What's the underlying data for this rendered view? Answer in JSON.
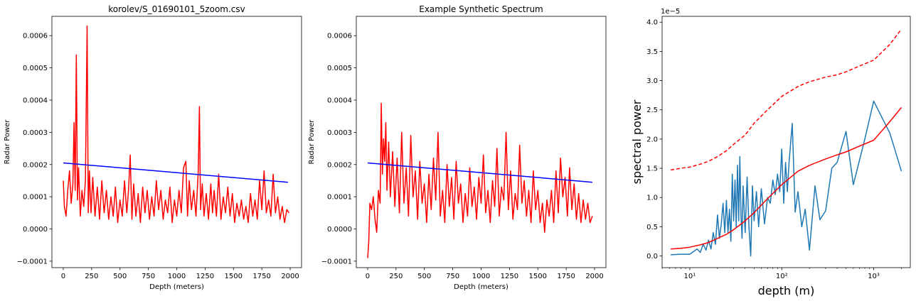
{
  "chart_data": [
    {
      "type": "line",
      "title": "korolev/S_01690101_5zoom.csv",
      "xlabel": "Depth (meters)",
      "ylabel": "Radar Power",
      "xlim": [
        -100,
        2100
      ],
      "ylim": [
        -0.00012,
        0.00066
      ],
      "xticks": [
        0,
        250,
        500,
        750,
        1000,
        1250,
        1500,
        1750,
        2000
      ],
      "xtick_labels": [
        "0",
        "250",
        "500",
        "750",
        "1000",
        "1250",
        "1500",
        "1750",
        "2000"
      ],
      "yticks": [
        -0.0001,
        0.0,
        0.0001,
        0.0002,
        0.0003,
        0.0004,
        0.0005,
        0.0006
      ],
      "ytick_labels": [
        "−0.0001",
        "0.0000",
        "0.0001",
        "0.0002",
        "0.0003",
        "0.0004",
        "0.0005",
        "0.0006"
      ],
      "series": [
        {
          "color": "#ff0000",
          "x": [
            0,
            10,
            25,
            40,
            55,
            70,
            85,
            95,
            105,
            115,
            125,
            135,
            150,
            165,
            180,
            195,
            210,
            220,
            230,
            245,
            260,
            280,
            300,
            320,
            340,
            360,
            380,
            400,
            420,
            440,
            460,
            480,
            500,
            520,
            540,
            560,
            575,
            590,
            605,
            620,
            640,
            660,
            680,
            700,
            720,
            740,
            760,
            780,
            800,
            820,
            840,
            860,
            880,
            900,
            920,
            940,
            960,
            980,
            1000,
            1020,
            1040,
            1060,
            1080,
            1095,
            1110,
            1130,
            1150,
            1170,
            1190,
            1200,
            1210,
            1225,
            1240,
            1260,
            1280,
            1300,
            1315,
            1330,
            1350,
            1370,
            1390,
            1410,
            1430,
            1450,
            1470,
            1490,
            1510,
            1530,
            1550,
            1570,
            1590,
            1610,
            1630,
            1650,
            1670,
            1690,
            1710,
            1730,
            1750,
            1770,
            1790,
            1810,
            1830,
            1850,
            1870,
            1890,
            1910,
            1930,
            1950,
            1970,
            1990
          ],
          "y": [
            0.00015,
            7e-05,
            4e-05,
            0.00012,
            0.00018,
            8e-05,
            0.00014,
            0.00033,
            0.00012,
            0.00054,
            9e-05,
            0.00019,
            4e-05,
            0.00012,
            7e-05,
            0.00015,
            0.00063,
            5e-05,
            0.00018,
            5e-05,
            0.00016,
            4e-05,
            0.00013,
            3e-05,
            0.00015,
            5e-05,
            0.00012,
            3e-05,
            0.0001,
            4e-05,
            0.00013,
            2e-05,
            9e-05,
            4e-05,
            0.00015,
            5e-05,
            0.00012,
            0.00023,
            3e-05,
            0.00014,
            4e-05,
            0.00011,
            2e-05,
            0.00013,
            5e-05,
            0.00012,
            3e-05,
            0.0001,
            4e-05,
            0.00015,
            6e-05,
            0.00012,
            3e-05,
            9e-05,
            5e-05,
            0.00013,
            2e-05,
            9e-05,
            4e-05,
            0.00012,
            5e-05,
            0.00019,
            0.00021,
            4e-05,
            0.00015,
            6e-05,
            0.00012,
            4e-05,
            0.00018,
            0.00038,
            6e-05,
            0.00014,
            4e-05,
            0.00011,
            3e-05,
            0.00014,
            5e-05,
            0.00012,
            4e-05,
            0.00017,
            3e-05,
            0.0001,
            5e-05,
            0.00013,
            4e-05,
            0.00011,
            2e-05,
            8e-05,
            4e-05,
            9e-05,
            3e-05,
            7e-05,
            2e-05,
            0.00011,
            4e-05,
            9e-05,
            3e-05,
            0.00015,
            6e-05,
            0.00018,
            5e-05,
            9e-05,
            4e-05,
            0.00017,
            5e-05,
            0.0001,
            3e-05,
            7e-05,
            2e-05,
            6e-05,
            5e-05
          ]
        },
        {
          "color": "#0000ff",
          "x": [
            0,
            1980
          ],
          "y": [
            0.000205,
            0.000145
          ]
        }
      ]
    },
    {
      "type": "line",
      "title": "Example Synthetic Spectrum",
      "xlabel": "Depth (meters)",
      "ylabel": "Radar Power",
      "xlim": [
        -100,
        2100
      ],
      "ylim": [
        -0.00012,
        0.00066
      ],
      "xticks": [
        0,
        250,
        500,
        750,
        1000,
        1250,
        1500,
        1750,
        2000
      ],
      "xtick_labels": [
        "0",
        "250",
        "500",
        "750",
        "1000",
        "1250",
        "1500",
        "1750",
        "2000"
      ],
      "yticks": [
        -0.0001,
        0.0,
        0.0001,
        0.0002,
        0.0003,
        0.0004,
        0.0005,
        0.0006
      ],
      "ytick_labels": [
        "−0.0001",
        "0.0000",
        "0.0001",
        "0.0002",
        "0.0003",
        "0.0004",
        "0.0005",
        "0.0006"
      ],
      "series": [
        {
          "color": "#ff0000",
          "x": [
            0,
            10,
            20,
            35,
            50,
            65,
            80,
            95,
            110,
            120,
            130,
            140,
            150,
            160,
            170,
            185,
            200,
            220,
            240,
            260,
            280,
            300,
            320,
            340,
            360,
            380,
            400,
            420,
            440,
            460,
            480,
            500,
            520,
            540,
            560,
            580,
            600,
            620,
            640,
            660,
            680,
            700,
            720,
            740,
            760,
            780,
            800,
            820,
            840,
            860,
            880,
            900,
            920,
            940,
            960,
            980,
            1000,
            1020,
            1040,
            1060,
            1080,
            1100,
            1120,
            1140,
            1160,
            1180,
            1200,
            1220,
            1240,
            1260,
            1280,
            1300,
            1320,
            1340,
            1360,
            1380,
            1400,
            1420,
            1440,
            1460,
            1480,
            1500,
            1520,
            1540,
            1560,
            1580,
            1600,
            1620,
            1640,
            1660,
            1680,
            1700,
            1720,
            1740,
            1760,
            1780,
            1800,
            1820,
            1840,
            1860,
            1880,
            1900,
            1920,
            1940,
            1960,
            1980
          ],
          "y": [
            -9e-05,
            -4e-05,
            8e-05,
            6e-05,
            0.0001,
            3e-05,
            -1e-05,
            0.00012,
            8e-05,
            0.00039,
            0.00017,
            0.00028,
            0.00021,
            0.00033,
            0.00012,
            0.00027,
            0.0001,
            0.00024,
            7e-05,
            0.00022,
            5e-05,
            0.0003,
            8e-05,
            0.00019,
            4e-05,
            0.00029,
            0.0001,
            0.00018,
            3e-05,
            0.00021,
            8e-05,
            0.00014,
            2e-05,
            0.00017,
            6e-05,
            0.00022,
            9e-05,
            0.0003,
            4e-05,
            0.00012,
            2e-05,
            0.0002,
            7e-05,
            0.00016,
            3e-05,
            0.00021,
            8e-05,
            0.00014,
            2e-05,
            0.00011,
            4e-05,
            0.00019,
            7e-05,
            0.00013,
            3e-05,
            0.00016,
            8e-05,
            0.00023,
            5e-05,
            0.00012,
            2e-05,
            0.00015,
            7e-05,
            0.00025,
            4e-05,
            0.00013,
            9e-05,
            0.0003,
            6e-05,
            0.00018,
            3e-05,
            0.00011,
            6e-05,
            0.00026,
            8e-05,
            0.00015,
            4e-05,
            0.00012,
            2e-05,
            0.00018,
            6e-05,
            0.00012,
            2e-05,
            8e-05,
            -1e-05,
            9e-05,
            4e-05,
            0.00012,
            2e-05,
            0.00018,
            5e-05,
            0.00022,
            0.0001,
            0.00016,
            4e-05,
            0.00019,
            6e-05,
            0.00014,
            3e-05,
            0.00011,
            2e-05,
            9e-05,
            3e-05,
            8e-05,
            2e-05,
            4e-05
          ]
        },
        {
          "color": "#0000ff",
          "x": [
            0,
            1980
          ],
          "y": [
            0.000205,
            0.000145
          ]
        }
      ]
    },
    {
      "type": "line",
      "title": "",
      "xlabel": "depth (m)",
      "ylabel": "spectral power",
      "xscale": "log",
      "xlim": [
        5,
        2500
      ],
      "ylim": [
        -0.2,
        4.1
      ],
      "offset_text": "1e−5",
      "xticks": [
        10,
        100,
        1000
      ],
      "xtick_labels": [
        "10¹",
        "10²",
        "10³"
      ],
      "yticks": [
        0,
        0.5,
        1.0,
        1.5,
        2.0,
        2.5,
        3.0,
        3.5,
        4.0
      ],
      "ytick_labels": [
        "0.0",
        "0.5",
        "1.0",
        "1.5",
        "2.0",
        "2.5",
        "3.0",
        "3.5",
        "4.0"
      ],
      "series": [
        {
          "color": "#1f77b4",
          "x": [
            6.2,
            8,
            10,
            12,
            13,
            14,
            15,
            16,
            17,
            18,
            19,
            20,
            21,
            22,
            23,
            24,
            25,
            26,
            27,
            28,
            29,
            30,
            31,
            32,
            33,
            34,
            35,
            36,
            37,
            38,
            40,
            42,
            44,
            46,
            48,
            50,
            53,
            56,
            60,
            65,
            70,
            75,
            80,
            85,
            90,
            95,
            100,
            105,
            110,
            115,
            120,
            130,
            140,
            150,
            165,
            180,
            200,
            230,
            260,
            300,
            350,
            400,
            500,
            600,
            800,
            1000,
            1500,
            2000
          ],
          "y": [
            0.02,
            0.03,
            0.03,
            0.12,
            0.06,
            0.2,
            0.1,
            0.27,
            0.12,
            0.4,
            0.2,
            0.7,
            0.3,
            0.55,
            0.9,
            0.4,
            0.95,
            0.4,
            0.8,
            0.25,
            1.4,
            0.6,
            1.3,
            0.5,
            1.55,
            0.6,
            1.7,
            0.7,
            0.3,
            1.2,
            0.4,
            1.35,
            0.5,
            0.0,
            1.2,
            0.6,
            1.1,
            0.5,
            1.15,
            0.55,
            1.0,
            0.9,
            1.3,
            1.05,
            1.4,
            1.1,
            1.83,
            0.9,
            1.6,
            1.1,
            1.6,
            2.27,
            0.75,
            1.1,
            0.5,
            0.8,
            0.1,
            1.2,
            0.62,
            0.77,
            1.5,
            1.6,
            2.13,
            1.22,
            2.0,
            2.65,
            2.1,
            1.45
          ]
        },
        {
          "color": "#ff0000",
          "x": [
            6.2,
            8,
            10,
            13,
            16,
            20,
            25,
            30,
            40,
            50,
            70,
            100,
            150,
            200,
            300,
            400,
            500,
            700,
            1000,
            1500,
            2000
          ],
          "y": [
            0.12,
            0.13,
            0.15,
            0.19,
            0.23,
            0.3,
            0.37,
            0.45,
            0.6,
            0.74,
            0.98,
            1.22,
            1.45,
            1.55,
            1.66,
            1.73,
            1.78,
            1.88,
            1.98,
            2.3,
            2.54
          ]
        },
        {
          "color": "#ff0000",
          "dashed": true,
          "x": [
            6.2,
            8,
            10,
            13,
            16,
            20,
            25,
            30,
            40,
            50,
            70,
            100,
            150,
            200,
            300,
            400,
            500,
            700,
            1000,
            1500,
            2000
          ],
          "y": [
            1.47,
            1.5,
            1.52,
            1.57,
            1.62,
            1.7,
            1.8,
            1.91,
            2.07,
            2.27,
            2.5,
            2.73,
            2.9,
            2.98,
            3.06,
            3.1,
            3.15,
            3.25,
            3.35,
            3.62,
            3.88
          ]
        }
      ]
    }
  ]
}
